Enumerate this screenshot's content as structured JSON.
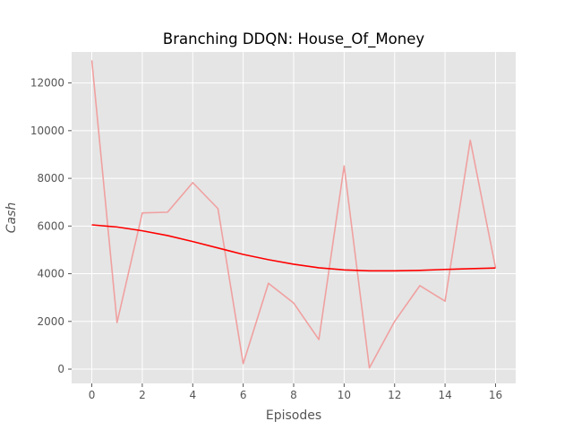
{
  "chart_data": {
    "type": "line",
    "title": "Branching DDQN: House_Of_Money",
    "xlabel": "Episodes",
    "ylabel": "Cash",
    "xlim": [
      -0.8,
      16.8
    ],
    "ylim": [
      -600,
      13300
    ],
    "xticks": [
      0,
      2,
      4,
      6,
      8,
      10,
      12,
      14,
      16
    ],
    "xtick_labels": [
      "0",
      "2",
      "4",
      "6",
      "8",
      "10",
      "12",
      "14",
      "16"
    ],
    "yticks": [
      0,
      2000,
      4000,
      6000,
      8000,
      10000,
      12000
    ],
    "ytick_labels": [
      "0",
      "2000",
      "4000",
      "6000",
      "8000",
      "10000",
      "12000"
    ],
    "grid": true,
    "background": "#e5e5e5",
    "grid_color": "#ffffff",
    "series": [
      {
        "color": "#f0a0a0",
        "x": [
          0,
          1,
          2,
          3,
          4,
          5,
          6,
          7,
          8,
          9,
          10,
          11,
          12,
          13,
          14,
          15,
          16
        ],
        "values": [
          12950,
          1950,
          6550,
          6580,
          7820,
          6730,
          230,
          3600,
          2770,
          1240,
          8520,
          50,
          2000,
          3500,
          2850,
          9600,
          4250
        ]
      },
      {
        "color": "#ff0000",
        "x": [
          0,
          1,
          2,
          3,
          4,
          5,
          6,
          7,
          8,
          9,
          10,
          11,
          12,
          13,
          14,
          15,
          16
        ],
        "values": [
          6050,
          5960,
          5800,
          5600,
          5350,
          5080,
          4810,
          4590,
          4400,
          4250,
          4160,
          4120,
          4120,
          4140,
          4180,
          4210,
          4240
        ]
      }
    ]
  }
}
